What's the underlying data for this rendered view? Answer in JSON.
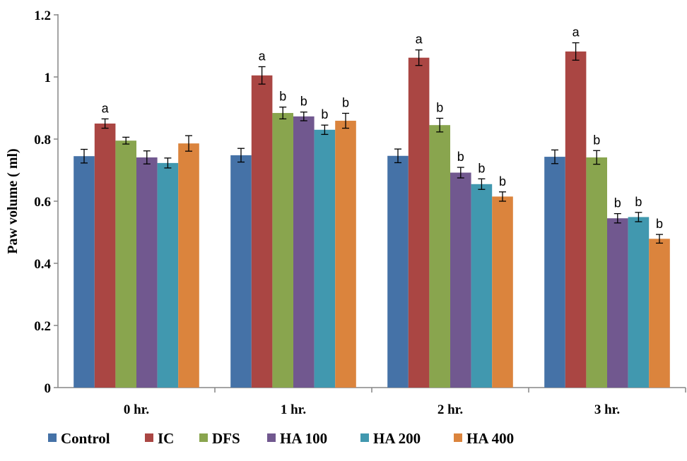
{
  "chart_data": {
    "type": "bar",
    "title": "",
    "xlabel": "",
    "ylabel": "Paw volume ( ml)",
    "ylim": [
      0,
      1.2
    ],
    "yticks": [
      "0",
      "0.2",
      "0.4",
      "0.6",
      "0.8",
      "1",
      "1.2"
    ],
    "grid": false,
    "legend": "bottom",
    "categories": [
      "0 hr.",
      "1 hr.",
      "2 hr.",
      "3 hr."
    ],
    "series": [
      {
        "name": "Control",
        "color": "#4572A7",
        "values": [
          0.745,
          0.748,
          0.746,
          0.743
        ],
        "errors": [
          0.022,
          0.022,
          0.022,
          0.022
        ],
        "labels": [
          "",
          "",
          "",
          ""
        ]
      },
      {
        "name": "IC",
        "color": "#AA4643",
        "values": [
          0.85,
          1.005,
          1.062,
          1.082
        ],
        "errors": [
          0.015,
          0.028,
          0.025,
          0.028
        ],
        "labels": [
          "a",
          "a",
          "a",
          "a"
        ]
      },
      {
        "name": "DFS",
        "color": "#89A54E",
        "values": [
          0.795,
          0.884,
          0.845,
          0.741
        ],
        "errors": [
          0.011,
          0.019,
          0.022,
          0.022
        ],
        "labels": [
          "",
          "b",
          "b",
          "b"
        ]
      },
      {
        "name": "HA 100",
        "color": "#71588F",
        "values": [
          0.741,
          0.873,
          0.692,
          0.545
        ],
        "errors": [
          0.021,
          0.014,
          0.017,
          0.015
        ],
        "labels": [
          "",
          "b",
          "b",
          "b"
        ]
      },
      {
        "name": "HA 200",
        "color": "#4198AF",
        "values": [
          0.723,
          0.83,
          0.655,
          0.549
        ],
        "errors": [
          0.016,
          0.015,
          0.017,
          0.015
        ],
        "labels": [
          "",
          "b",
          "b",
          "b"
        ]
      },
      {
        "name": "HA 400",
        "color": "#DB843D",
        "values": [
          0.786,
          0.859,
          0.615,
          0.479
        ],
        "errors": [
          0.025,
          0.024,
          0.015,
          0.014
        ],
        "labels": [
          "",
          "b",
          "b",
          "b"
        ]
      }
    ]
  }
}
